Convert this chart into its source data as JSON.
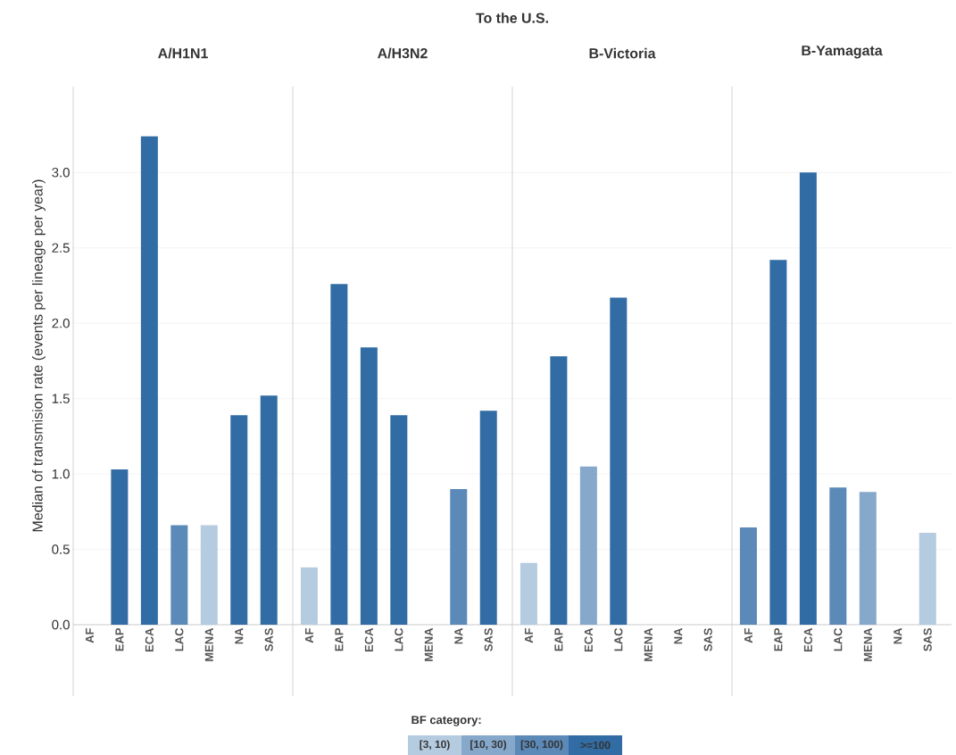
{
  "chart_data": [
    {
      "type": "bar",
      "title": "A/H1N1",
      "annotations": [
        "To the U.S."
      ],
      "ylabel": "Median of transmision rate (events per lineage per year)",
      "grid": "y",
      "categories": [
        "AF",
        "EAP",
        "ECA",
        "LAC",
        "MENA",
        "NA",
        "SAS"
      ],
      "ylim": [
        0,
        3.57
      ],
      "yticks": [
        {
          "value": 0,
          "label": "0.0"
        },
        {
          "value": 0.5,
          "label": "0.5"
        },
        {
          "value": 1,
          "label": "1.0"
        },
        {
          "value": 1.5,
          "label": "1.5"
        },
        {
          "value": 2,
          "label": "2.0"
        },
        {
          "value": 2.5,
          "label": "2.5"
        },
        {
          "value": 3,
          "label": "3.0"
        }
      ],
      "series": [
        {
          "color": "#b5cbe0",
          "values": [
            null,
            null,
            null,
            null,
            0.66,
            null,
            null
          ]
        },
        {
          "color": "#86a8cb",
          "values": [
            null,
            null,
            null,
            null,
            null,
            null,
            null
          ]
        },
        {
          "color": "#5b89b8",
          "values": [
            null,
            null,
            null,
            0.66,
            null,
            null,
            null
          ]
        },
        {
          "color": "#326ca4",
          "values": [
            null,
            1.03,
            3.24,
            null,
            null,
            1.39,
            1.52
          ]
        }
      ]
    },
    {
      "type": "bar",
      "title": "A/H3N2",
      "grid": "y",
      "tick_labels": "x",
      "categories": [
        "AF",
        "EAP",
        "ECA",
        "LAC",
        "MENA",
        "NA",
        "SAS"
      ],
      "ylim": [
        0,
        3.57
      ],
      "yticks": [
        {
          "value": 0,
          "label": null
        },
        {
          "value": 0.5,
          "label": null
        },
        {
          "value": 1,
          "label": null
        },
        {
          "value": 1.5,
          "label": null
        },
        {
          "value": 2,
          "label": null
        },
        {
          "value": 2.5,
          "label": null
        },
        {
          "value": 3,
          "label": null
        }
      ],
      "series": [
        {
          "color": "#b5cbe0",
          "values": [
            0.38,
            null,
            null,
            null,
            null,
            null,
            null
          ]
        },
        {
          "color": "#86a8cb",
          "values": [
            null,
            null,
            null,
            null,
            null,
            null,
            null
          ]
        },
        {
          "color": "#5b89b8",
          "values": [
            null,
            null,
            null,
            null,
            null,
            0.9,
            null
          ]
        },
        {
          "color": "#326ca4",
          "values": [
            null,
            2.26,
            1.84,
            1.39,
            null,
            null,
            1.42
          ]
        }
      ]
    },
    {
      "type": "bar",
      "title": "B-Victoria",
      "grid": "y",
      "tick_labels": "x",
      "categories": [
        "AF",
        "EAP",
        "ECA",
        "LAC",
        "MENA",
        "NA",
        "SAS"
      ],
      "ylim": [
        0,
        3.57
      ],
      "yticks": [
        {
          "value": 0,
          "label": null
        },
        {
          "value": 0.5,
          "label": null
        },
        {
          "value": 1,
          "label": null
        },
        {
          "value": 1.5,
          "label": null
        },
        {
          "value": 2,
          "label": null
        },
        {
          "value": 2.5,
          "label": null
        },
        {
          "value": 3,
          "label": null
        }
      ],
      "series": [
        {
          "color": "#b5cbe0",
          "values": [
            0.41,
            null,
            null,
            null,
            null,
            null,
            null
          ]
        },
        {
          "color": "#86a8cb",
          "values": [
            null,
            null,
            1.05,
            null,
            null,
            null,
            null
          ]
        },
        {
          "color": "#5b89b8",
          "values": [
            null,
            null,
            null,
            null,
            null,
            null,
            null
          ]
        },
        {
          "color": "#326ca4",
          "values": [
            null,
            1.78,
            null,
            2.17,
            null,
            null,
            null
          ]
        }
      ]
    },
    {
      "type": "bar",
      "title": "B-Yamagata",
      "grid": "y",
      "tick_labels": "x",
      "legend_title": "BF category:",
      "legend": "bottom",
      "categories": [
        "AF",
        "EAP",
        "ECA",
        "LAC",
        "MENA",
        "NA",
        "SAS"
      ],
      "ylim": [
        0,
        3.57
      ],
      "yticks": [
        {
          "value": 0,
          "label": null
        },
        {
          "value": 0.5,
          "label": null
        },
        {
          "value": 1,
          "label": null
        },
        {
          "value": 1.5,
          "label": null
        },
        {
          "value": 2,
          "label": null
        },
        {
          "value": 2.5,
          "label": null
        },
        {
          "value": 3,
          "label": null
        }
      ],
      "series": [
        {
          "name": "[3, 10)",
          "color": "#b5cbe0",
          "values": [
            null,
            null,
            null,
            null,
            null,
            null,
            0.61
          ]
        },
        {
          "name": "[10, 30)",
          "color": "#86a8cb",
          "values": [
            null,
            null,
            null,
            null,
            0.88,
            null,
            null
          ]
        },
        {
          "name": "[30, 100)",
          "color": "#5b89b8",
          "values": [
            0.645,
            null,
            null,
            0.91,
            null,
            null,
            null
          ]
        },
        {
          "name": ">=100",
          "color": "#326ca4",
          "values": [
            null,
            2.42,
            3.0,
            null,
            null,
            null,
            null
          ]
        }
      ]
    }
  ]
}
